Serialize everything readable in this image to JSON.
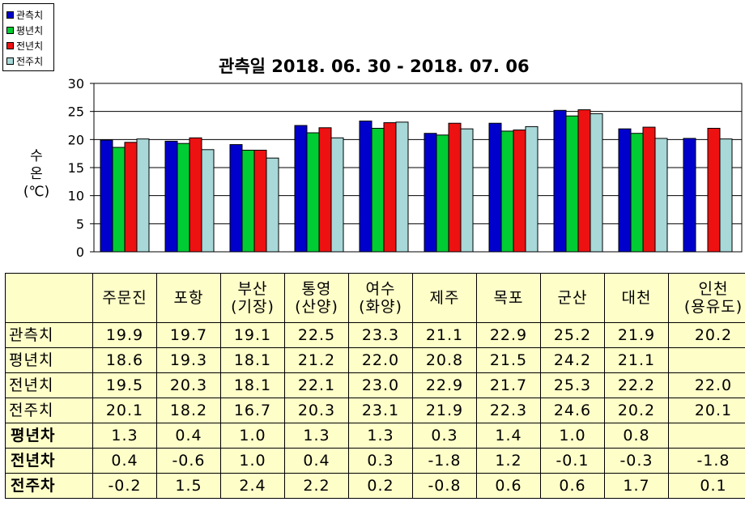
{
  "chart_data": {
    "type": "bar",
    "title": "관측일 2018. 06. 30 - 2018. 07. 06",
    "ylabel": [
      "수",
      "온",
      "(℃)"
    ],
    "ylim": [
      0,
      30
    ],
    "yticks": [
      0,
      5,
      10,
      15,
      20,
      25,
      30
    ],
    "grid": true,
    "legend_position": "top-left",
    "categories": [
      "주문진",
      "포항",
      "부산(기장)",
      "통영(산양)",
      "여수(화양)",
      "제주",
      "목포",
      "군산",
      "대천",
      "인천(용유도)"
    ],
    "series": [
      {
        "name": "관측치",
        "color": "#0000cc",
        "values": [
          19.9,
          19.7,
          19.1,
          22.5,
          23.3,
          21.1,
          22.9,
          25.2,
          21.9,
          20.2
        ]
      },
      {
        "name": "평년치",
        "color": "#00cc33",
        "values": [
          18.6,
          19.3,
          18.1,
          21.2,
          22.0,
          20.8,
          21.5,
          24.2,
          21.1,
          null
        ]
      },
      {
        "name": "전년치",
        "color": "#ee1111",
        "values": [
          19.5,
          20.3,
          18.1,
          22.1,
          23.0,
          22.9,
          21.7,
          25.3,
          22.2,
          22.0
        ]
      },
      {
        "name": "전주치",
        "color": "#a8d8d8",
        "values": [
          20.1,
          18.2,
          16.7,
          20.3,
          23.1,
          21.9,
          22.3,
          24.6,
          20.2,
          20.1
        ]
      }
    ]
  },
  "table": {
    "header": [
      [
        "주문진"
      ],
      [
        "포항"
      ],
      [
        "부산",
        "(기장)"
      ],
      [
        "통영",
        "(산양)"
      ],
      [
        "여수",
        "(화양)"
      ],
      [
        "제주"
      ],
      [
        "목포"
      ],
      [
        "군산"
      ],
      [
        "대천"
      ],
      [
        "인천",
        "(용유도)"
      ]
    ],
    "rows": [
      {
        "label": "관측치",
        "bold": false,
        "values": [
          "19.9",
          "19.7",
          "19.1",
          "22.5",
          "23.3",
          "21.1",
          "22.9",
          "25.2",
          "21.9",
          "20.2"
        ]
      },
      {
        "label": "평년치",
        "bold": false,
        "values": [
          "18.6",
          "19.3",
          "18.1",
          "21.2",
          "22.0",
          "20.8",
          "21.5",
          "24.2",
          "21.1",
          ""
        ]
      },
      {
        "label": "전년치",
        "bold": false,
        "values": [
          "19.5",
          "20.3",
          "18.1",
          "22.1",
          "23.0",
          "22.9",
          "21.7",
          "25.3",
          "22.2",
          "22.0"
        ]
      },
      {
        "label": "전주치",
        "bold": false,
        "values": [
          "20.1",
          "18.2",
          "16.7",
          "20.3",
          "23.1",
          "21.9",
          "22.3",
          "24.6",
          "20.2",
          "20.1"
        ]
      },
      {
        "label": "평년차",
        "bold": true,
        "values": [
          "1.3",
          "0.4",
          "1.0",
          "1.3",
          "1.3",
          "0.3",
          "1.4",
          "1.0",
          "0.8",
          ""
        ]
      },
      {
        "label": "전년차",
        "bold": true,
        "values": [
          "0.4",
          "-0.6",
          "1.0",
          "0.4",
          "0.3",
          "-1.8",
          "1.2",
          "-0.1",
          "-0.3",
          "-1.8"
        ]
      },
      {
        "label": "전주차",
        "bold": true,
        "values": [
          "-0.2",
          "1.5",
          "2.4",
          "2.2",
          "0.2",
          "-0.8",
          "0.6",
          "0.6",
          "1.7",
          "0.1"
        ]
      }
    ]
  }
}
